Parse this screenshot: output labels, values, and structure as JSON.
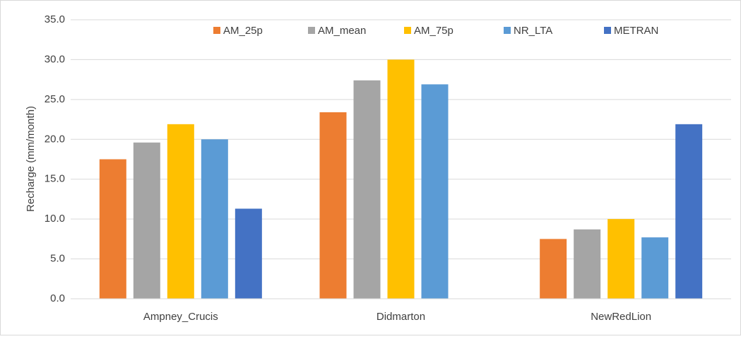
{
  "chart_data": {
    "type": "bar",
    "y_label": "Recharge (mm/month)",
    "categories": [
      "Ampney_Crucis",
      "Didmarton",
      "NewRedLion"
    ],
    "series": [
      {
        "name": "AM_25p",
        "color": "#ED7D31",
        "values": [
          17.5,
          23.4,
          7.5
        ]
      },
      {
        "name": "AM_mean",
        "color": "#A5A5A5",
        "values": [
          19.6,
          27.4,
          8.7
        ]
      },
      {
        "name": "AM_75p",
        "color": "#FFC000",
        "values": [
          21.9,
          30.0,
          10.0
        ]
      },
      {
        "name": "NR_LTA",
        "color": "#5B9BD5",
        "values": [
          20.0,
          26.9,
          7.7
        ]
      },
      {
        "name": "METRAN",
        "color": "#4472C4",
        "values": [
          11.3,
          null,
          21.9
        ]
      }
    ],
    "ylim": [
      0,
      35
    ],
    "yticks": [
      {
        "value": 0,
        "label": "0.0"
      },
      {
        "value": 5,
        "label": "5.0"
      },
      {
        "value": 10,
        "label": "10.0"
      },
      {
        "value": 15,
        "label": "15.0"
      },
      {
        "value": 20,
        "label": "20.0"
      },
      {
        "value": 25,
        "label": "25.0"
      },
      {
        "value": 30,
        "label": "30.0"
      },
      {
        "value": 35,
        "label": "35.0"
      }
    ],
    "grid": true
  }
}
